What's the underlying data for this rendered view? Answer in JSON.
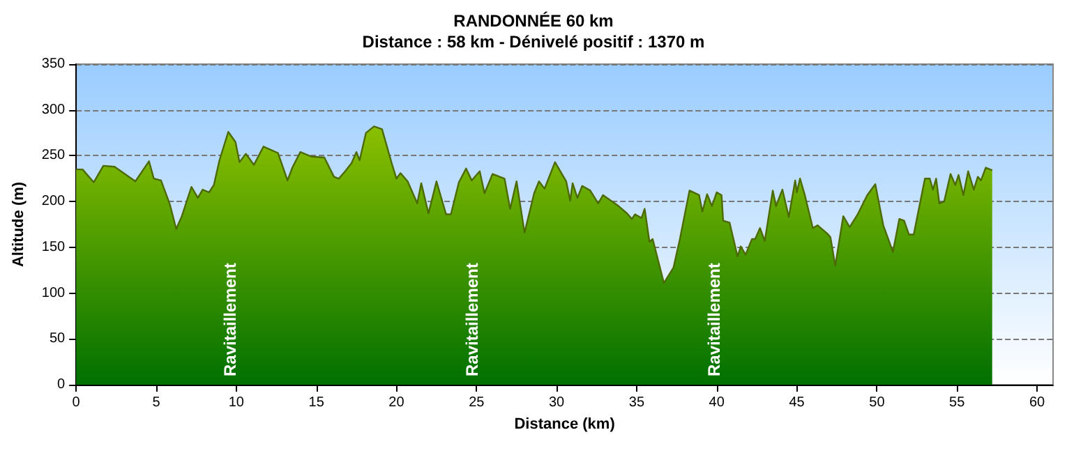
{
  "chart_data": {
    "type": "area",
    "title": "RANDONNÉE 60 km",
    "subtitle": "Distance : 58 km - Dénivelé positif : 1370 m",
    "xlabel": "Distance (km)",
    "ylabel": "Altitude (m)",
    "xlim": [
      0,
      61
    ],
    "xticks": [
      0,
      5,
      10,
      15,
      20,
      25,
      30,
      35,
      40,
      45,
      50,
      55,
      60
    ],
    "ylim": [
      0,
      350
    ],
    "yticks": [
      0,
      50,
      100,
      150,
      200,
      250,
      300,
      350
    ],
    "grid": "y",
    "marker": "none",
    "line_style": "solid",
    "annotations": [
      "Ravitaillement",
      "Ravitaillement",
      "Ravitaillement"
    ],
    "series": [
      {
        "color": "#8cc000",
        "x": [
          0,
          0.4,
          1.1,
          1.7,
          2.4,
          3.7,
          4.55,
          4.85,
          5.3,
          5.85,
          6.25,
          6.6,
          7.2,
          7.6,
          7.9,
          8.3,
          8.6,
          8.95,
          9.5,
          9.95,
          10.2,
          10.6,
          11.1,
          11.7,
          12.6,
          13.2,
          13.5,
          14.0,
          14.7,
          15.5,
          16.1,
          16.4,
          16.8,
          17.2,
          17.5,
          17.7,
          18.1,
          18.6,
          19.1,
          19.7,
          20.0,
          20.25,
          20.7,
          21.3,
          21.55,
          22.0,
          22.5,
          23.1,
          23.4,
          23.9,
          24.35,
          24.7,
          25.2,
          25.5,
          26.0,
          26.75,
          27.1,
          27.5,
          28.0,
          28.6,
          28.9,
          29.25,
          29.9,
          30.6,
          30.85,
          31.0,
          31.3,
          31.6,
          32.1,
          32.6,
          32.9,
          33.8,
          34.4,
          34.7,
          34.9,
          35.3,
          35.5,
          35.8,
          36.0,
          36.7,
          37.3,
          37.7,
          38.3,
          38.9,
          39.1,
          39.4,
          39.7,
          40.0,
          40.3,
          40.4,
          40.8,
          41.3,
          41.5,
          41.8,
          42.2,
          42.4,
          42.7,
          43.0,
          43.5,
          43.7,
          44.1,
          44.5,
          44.9,
          45.0,
          45.2,
          45.5,
          46.0,
          46.3,
          46.9,
          47.1,
          47.4,
          47.9,
          48.3,
          48.8,
          49.4,
          49.9,
          50.4,
          51.0,
          51.4,
          51.7,
          52.0,
          52.3,
          53.0,
          53.3,
          53.5,
          53.7,
          53.9,
          54.2,
          54.6,
          54.9,
          55.1,
          55.4,
          55.7,
          56.05,
          56.3,
          56.5,
          56.8,
          57.2
        ],
        "values": [
          235,
          235,
          221,
          239,
          238,
          222,
          244,
          225,
          223,
          197,
          170,
          184,
          216,
          204,
          213,
          210,
          218,
          245,
          276,
          265,
          243,
          252,
          240,
          260,
          253,
          223,
          237,
          254,
          249,
          248,
          227,
          225,
          233,
          242,
          254,
          245,
          275,
          282,
          279,
          242,
          225,
          231,
          222,
          198,
          220,
          187,
          222,
          186,
          186,
          221,
          236,
          223,
          233,
          209,
          230,
          225,
          192,
          222,
          166,
          209,
          222,
          214,
          243,
          222,
          201,
          220,
          204,
          217,
          212,
          198,
          207,
          196,
          187,
          181,
          186,
          182,
          192,
          156,
          159,
          111,
          128,
          159,
          212,
          207,
          189,
          208,
          195,
          210,
          207,
          179,
          177,
          140,
          151,
          142,
          159,
          159,
          171,
          157,
          212,
          195,
          213,
          183,
          223,
          210,
          225,
          207,
          171,
          174,
          165,
          161,
          130,
          184,
          172,
          186,
          207,
          219,
          174,
          145,
          181,
          179,
          164,
          164,
          225,
          225,
          213,
          225,
          198,
          200,
          230,
          218,
          229,
          207,
          233,
          213,
          227,
          223,
          237,
          234
        ]
      }
    ]
  }
}
